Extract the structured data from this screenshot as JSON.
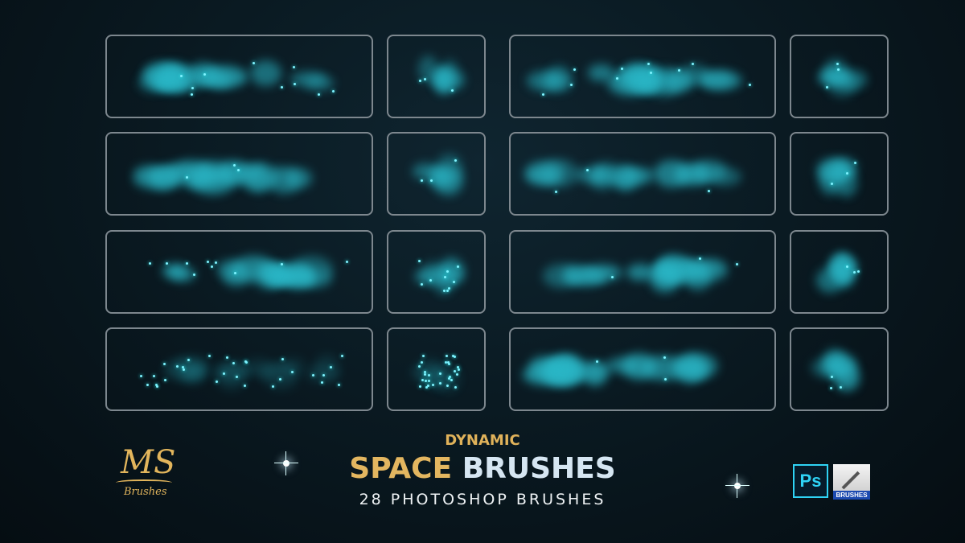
{
  "headline": {
    "top": "DYNAMIC",
    "main_part1": "SPACE",
    "main_part2": "BRUSHES",
    "subtitle": "28 PHOTOSHOP BRUSHES"
  },
  "logo": {
    "mark": "MS",
    "text": "Brushes"
  },
  "badges": {
    "photoshop": "Ps",
    "brushes": "BRUSHES"
  },
  "colors": {
    "brush": "#2ab8c8",
    "gold": "#e3b660",
    "frame": "#7d878e"
  },
  "previews": [
    {
      "type": "stroke",
      "style": "cloud-knots"
    },
    {
      "type": "stamp",
      "style": "cloud"
    },
    {
      "type": "stroke",
      "style": "cloud-knots"
    },
    {
      "type": "stamp",
      "style": "cloud"
    },
    {
      "type": "stroke",
      "style": "dense-cloud"
    },
    {
      "type": "stamp",
      "style": "dense"
    },
    {
      "type": "stroke",
      "style": "wispy"
    },
    {
      "type": "stamp",
      "style": "wispy"
    },
    {
      "type": "stroke",
      "style": "sparkle-cloud"
    },
    {
      "type": "stamp",
      "style": "sparkle"
    },
    {
      "type": "stroke",
      "style": "clumpy"
    },
    {
      "type": "stamp",
      "style": "clumpy"
    },
    {
      "type": "stroke",
      "style": "stars"
    },
    {
      "type": "stamp",
      "style": "stars"
    },
    {
      "type": "stroke",
      "style": "soft-cloud"
    },
    {
      "type": "stamp",
      "style": "soft"
    }
  ]
}
